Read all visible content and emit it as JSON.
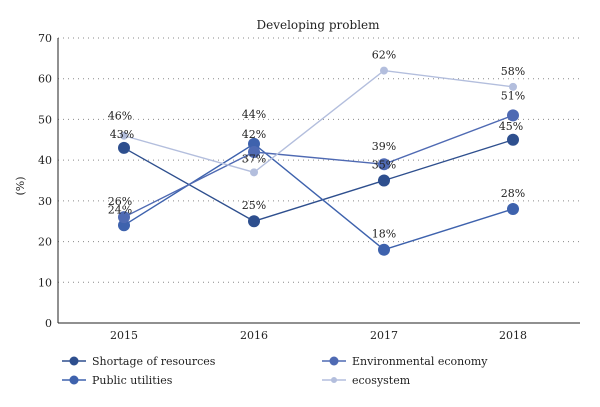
{
  "chart_data": {
    "type": "line",
    "title": "Developing problem",
    "ylabel": "(%)",
    "xlabel": "",
    "categories": [
      "2015",
      "2016",
      "2017",
      "2018"
    ],
    "ylim": [
      0,
      70
    ],
    "yticks": [
      0,
      10,
      20,
      30,
      40,
      50,
      60,
      70
    ],
    "grid": true,
    "legend_position": "bottom",
    "series": [
      {
        "name": "Shortage of resources",
        "color": "#2e4f8e",
        "values": [
          43,
          25,
          35,
          45
        ],
        "labels": [
          "43%",
          "25%",
          "35%",
          "45%"
        ]
      },
      {
        "name": "Public utilities",
        "color": "#3e62ad",
        "values": [
          24,
          44,
          18,
          28
        ],
        "labels": [
          "24%",
          "44%",
          "18%",
          "28%"
        ]
      },
      {
        "name": "Environmental economy",
        "color": "#4f6ab3",
        "values": [
          26,
          42,
          39,
          51
        ],
        "labels": [
          "26%",
          "42%",
          "39%",
          "51%"
        ]
      },
      {
        "name": "ecosystem",
        "color": "#b3bedd",
        "values": [
          46,
          37,
          62,
          58
        ],
        "labels": [
          "46%",
          "37%",
          "62%",
          "58%"
        ]
      }
    ]
  }
}
